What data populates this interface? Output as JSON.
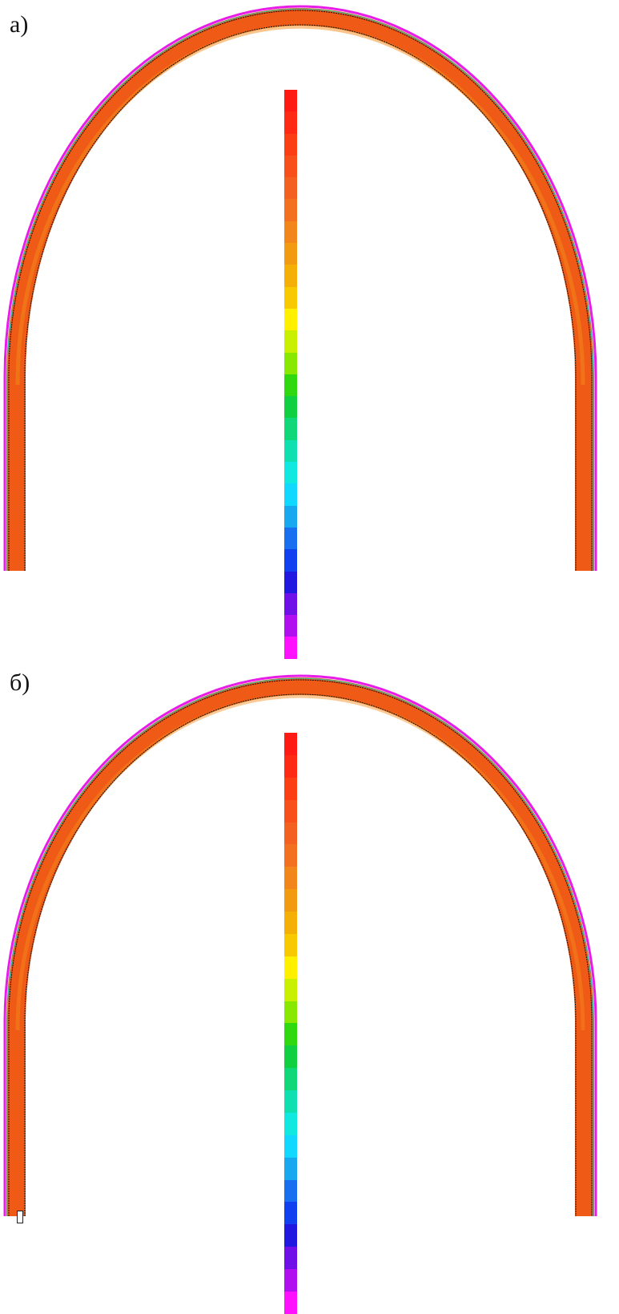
{
  "panels": [
    {
      "label": "а)",
      "legend_title": "",
      "ticks": [
        "",
        "",
        "",
        "",
        "",
        "",
        "",
        "",
        "",
        "",
        "",
        "",
        "",
        "",
        "",
        "",
        "",
        "",
        "",
        "",
        "",
        "",
        "",
        "",
        ""
      ]
    },
    {
      "label": "б)",
      "legend_title": "",
      "ticks": [
        "",
        "",
        "",
        "",
        "",
        "",
        "",
        "",
        "",
        "",
        "",
        "",
        "",
        "",
        "",
        "",
        "",
        "",
        "",
        "",
        "",
        "",
        "",
        "",
        "",
        ""
      ]
    }
  ],
  "bottom_tag": "",
  "colors": {
    "arch_fill": "#ef5a16",
    "arch_highlight": "#f48c1a",
    "outer_edge": "#e81ce8",
    "inner_edge": "#1ec7a8",
    "colorbar": [
      "#ff1a14",
      "#ff2a14",
      "#fc3e14",
      "#f8501a",
      "#f46020",
      "#f27020",
      "#f2861a",
      "#f29a10",
      "#f5b008",
      "#f8c800",
      "#fff000",
      "#c8f000",
      "#88e800",
      "#30d810",
      "#10d040",
      "#10d878",
      "#10e0b0",
      "#10e8e0",
      "#10d8ff",
      "#18a8f0",
      "#1870f0",
      "#1040f0",
      "#2018e0",
      "#7010e8",
      "#b010f0",
      "#ff10ff"
    ]
  }
}
